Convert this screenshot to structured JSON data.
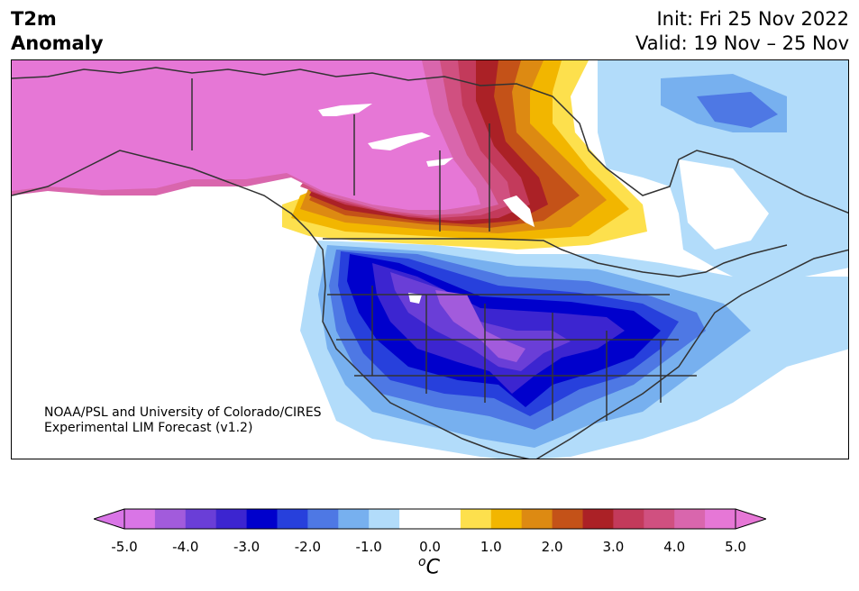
{
  "title": {
    "line1": "T2m",
    "line2": "Anomaly"
  },
  "init": {
    "line1": "Init: Fri 25 Nov 2022",
    "line2": "Valid: 19 Nov – 25 Nov"
  },
  "credit": {
    "line1": "NOAA/PSL and University of Colorado/CIRES",
    "line2": "Experimental LIM Forecast (v1.2)"
  },
  "colorbar": {
    "unit_superscript": "o",
    "unit_letter": "C",
    "ticks": [
      "-5.0",
      "-4.0",
      "-3.0",
      "-2.0",
      "-1.0",
      "0.0",
      "1.0",
      "2.0",
      "3.0",
      "4.0",
      "5.0"
    ],
    "colors": [
      "#d975e6",
      "#a25bdc",
      "#6a3ed7",
      "#3c25d0",
      "#0000cc",
      "#2740dc",
      "#4e78e4",
      "#77b0ef",
      "#b2dcfa",
      "#ffffff",
      "#ffffff",
      "#fde04d",
      "#f2b600",
      "#dd8a12",
      "#c45218",
      "#ab2126",
      "#c33a5b",
      "#d05080",
      "#d966ad",
      "#e677d6"
    ],
    "under_color": "#d975e6",
    "over_color": "#e677d6"
  }
}
